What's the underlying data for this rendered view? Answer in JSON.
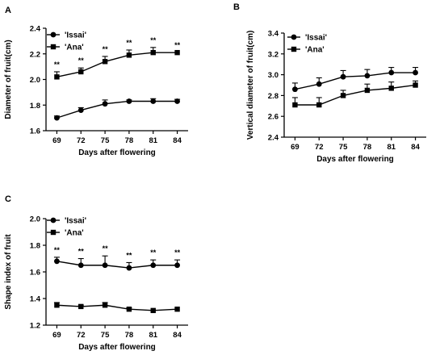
{
  "chart_data": [
    {
      "panel": "A",
      "type": "line",
      "xlabel": "Days after flowering",
      "ylabel": "Diameter of fruit(cm)",
      "x": [
        69,
        72,
        75,
        78,
        81,
        84
      ],
      "ylim": [
        1.6,
        2.4
      ],
      "yticks": [
        "1.6",
        "1.8",
        "2.0",
        "2.2",
        "2.4"
      ],
      "legend": "top-left",
      "series": [
        {
          "name": "'Issai'",
          "marker": "circle",
          "values": [
            1.7,
            1.76,
            1.81,
            1.83,
            1.83,
            1.83
          ],
          "errors": [
            0.015,
            0.02,
            0.03,
            0.01,
            0.02,
            0.015
          ]
        },
        {
          "name": "'Ana'",
          "marker": "square",
          "values": [
            2.02,
            2.06,
            2.14,
            2.19,
            2.21,
            2.21
          ],
          "errors": [
            0.04,
            0.03,
            0.04,
            0.04,
            0.04,
            0.0
          ]
        }
      ],
      "annotations": [
        "**",
        "**",
        "**",
        "**",
        "**",
        "**"
      ]
    },
    {
      "panel": "B",
      "type": "line",
      "xlabel": "Days after flowering",
      "ylabel": "Vertical diameter of fruit(cm)",
      "x": [
        69,
        72,
        75,
        78,
        81,
        84
      ],
      "ylim": [
        2.4,
        3.4
      ],
      "yticks": [
        "2.4",
        "2.6",
        "2.8",
        "3.0",
        "3.2",
        "3.4"
      ],
      "legend": "top-left",
      "series": [
        {
          "name": "'Issai'",
          "marker": "circle",
          "values": [
            2.86,
            2.91,
            2.98,
            2.99,
            3.02,
            3.02
          ],
          "errors": [
            0.06,
            0.06,
            0.06,
            0.06,
            0.05,
            0.05
          ]
        },
        {
          "name": "'Ana'",
          "marker": "square",
          "values": [
            2.71,
            2.71,
            2.8,
            2.85,
            2.87,
            2.9
          ],
          "errors": [
            0.07,
            0.07,
            0.05,
            0.06,
            0.06,
            0.04
          ]
        }
      ],
      "annotations": []
    },
    {
      "panel": "C",
      "type": "line",
      "xlabel": "Days after flowering",
      "ylabel": "Shape index of fruit",
      "x": [
        69,
        72,
        75,
        78,
        81,
        84
      ],
      "ylim": [
        1.2,
        2.0
      ],
      "yticks": [
        "1.2",
        "1.4",
        "1.6",
        "1.8",
        "2.0"
      ],
      "legend": "top-left",
      "series": [
        {
          "name": "'Issai'",
          "marker": "circle",
          "values": [
            1.68,
            1.65,
            1.65,
            1.63,
            1.65,
            1.65
          ],
          "errors": [
            0.03,
            0.05,
            0.07,
            0.04,
            0.04,
            0.04
          ]
        },
        {
          "name": "'Ana'",
          "marker": "square",
          "values": [
            1.35,
            1.34,
            1.35,
            1.32,
            1.31,
            1.32
          ],
          "errors": [
            0.02,
            0.01,
            0.02,
            0.01,
            0.0,
            0.0
          ]
        }
      ],
      "annotations": [
        "**",
        "**",
        "**",
        "**",
        "**",
        "**"
      ]
    }
  ]
}
